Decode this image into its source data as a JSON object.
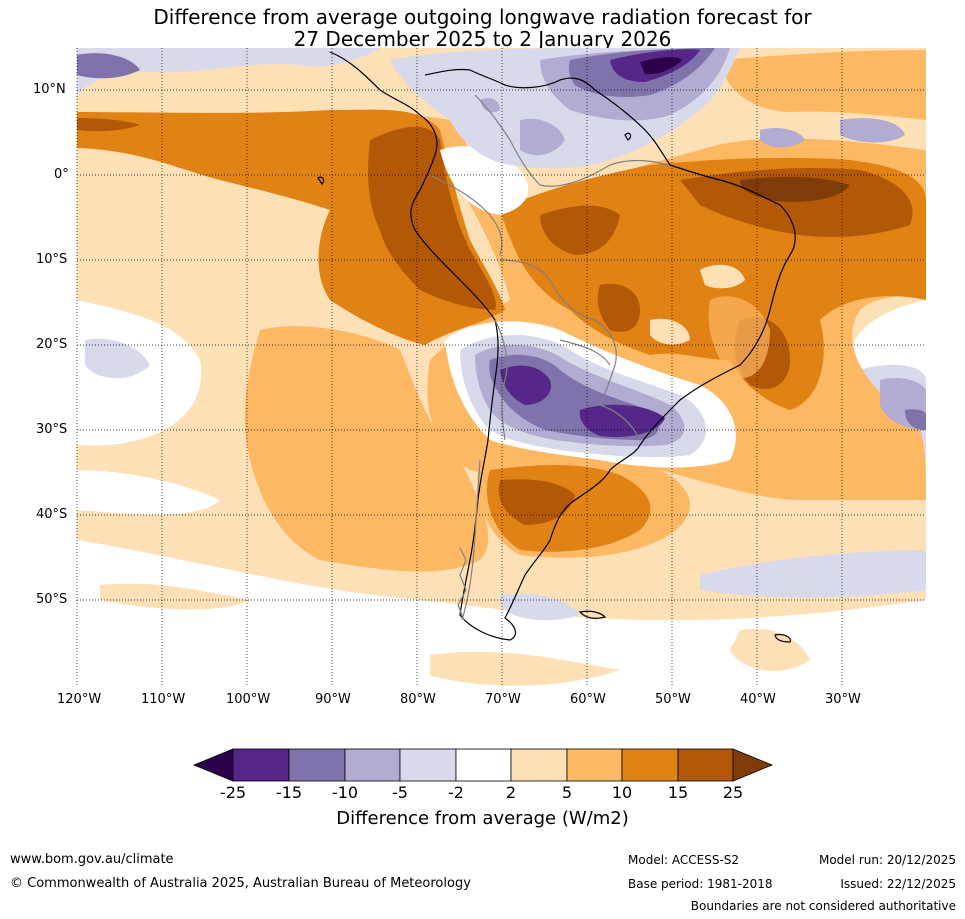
{
  "title": {
    "line1": "Difference from average outgoing longwave radiation forecast for",
    "line2": "27 December 2025 to 2 January 2026"
  },
  "axes": {
    "lat_labels": [
      "10°N",
      "0°",
      "10°S",
      "20°S",
      "30°S",
      "40°S",
      "50°S"
    ],
    "lon_labels": [
      "120°W",
      "110°W",
      "100°W",
      "90°W",
      "80°W",
      "70°W",
      "60°W",
      "50°W",
      "40°W",
      "30°W"
    ]
  },
  "colorbar": {
    "ticks": [
      "-25",
      "-15",
      "-10",
      "-5",
      "-2",
      "2",
      "5",
      "10",
      "15",
      "25"
    ],
    "label": "Difference from average (W/m2)",
    "colors": [
      "#2d004b",
      "#542788",
      "#8073ac",
      "#b2abd2",
      "#d8daeb",
      "#ffffff",
      "#fee0b6",
      "#fdb863",
      "#e08214",
      "#b35806",
      "#7f3b08"
    ]
  },
  "footer": {
    "website": "www.bom.gov.au/climate",
    "copyright": "© Commonwealth of Australia 2025, Australian Bureau of Meteorology",
    "model": "Model: ACCESS-S2",
    "base_period": "Base period: 1981-2018",
    "model_run": "Model run: 20/12/2025",
    "issued": "Issued: 22/12/2025",
    "disclaimer": "Boundaries are not considered authoritative"
  }
}
